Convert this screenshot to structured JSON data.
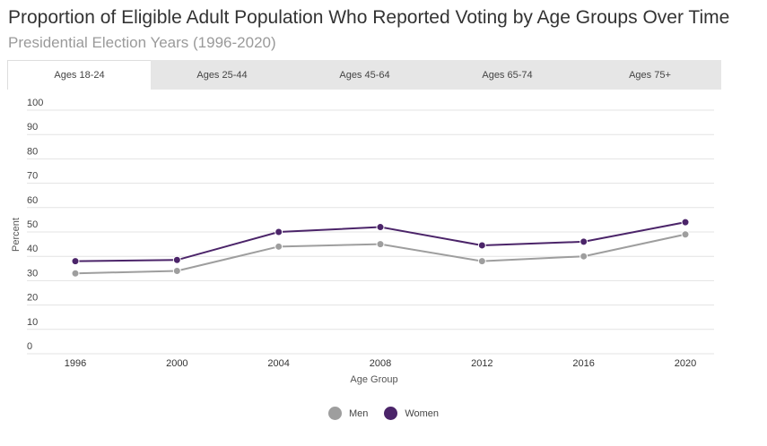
{
  "title": "Proportion of Eligible Adult Population Who Reported Voting by Age Groups Over Time",
  "subtitle": "Presidential Election Years (1996-2020)",
  "tabs": [
    {
      "label": "Ages 18-24",
      "active": true
    },
    {
      "label": "Ages 25-44",
      "active": false
    },
    {
      "label": "Ages 45-64",
      "active": false
    },
    {
      "label": "Ages 65-74",
      "active": false
    },
    {
      "label": "Ages 75+",
      "active": false
    }
  ],
  "colors": {
    "men": "#9e9e9e",
    "women": "#4b2469",
    "grid": "#e3e3e3",
    "text": "#333333"
  },
  "chart_data": {
    "type": "line",
    "x": [
      1996,
      2000,
      2004,
      2008,
      2012,
      2016,
      2020
    ],
    "xlabel": "Age Group",
    "ylabel": "Percent",
    "ylim": [
      0,
      100
    ],
    "yticks": [
      0,
      10,
      20,
      30,
      40,
      50,
      60,
      70,
      80,
      90,
      100
    ],
    "grid": true,
    "legend_position": "bottom",
    "series": [
      {
        "name": "Men",
        "color": "#9e9e9e",
        "values": [
          33,
          34,
          44,
          45,
          38,
          40,
          49
        ]
      },
      {
        "name": "Women",
        "color": "#4b2469",
        "values": [
          38,
          38.5,
          50,
          52,
          44.5,
          46,
          54
        ]
      }
    ]
  }
}
